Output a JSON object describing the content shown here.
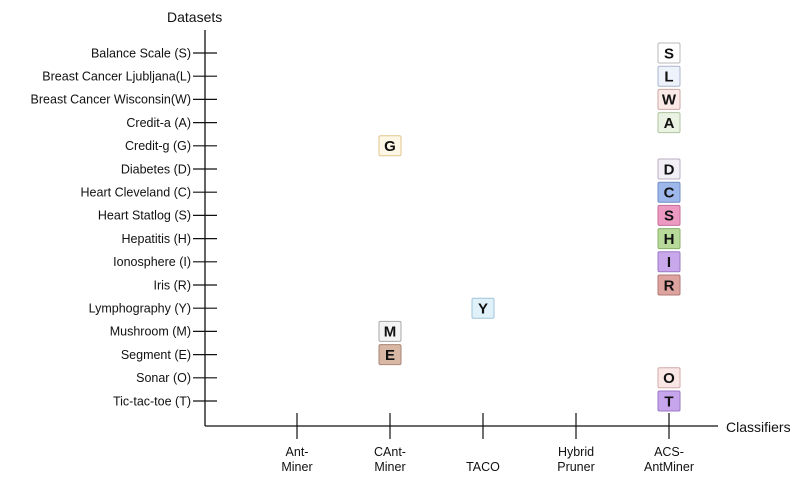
{
  "chart_data": {
    "type": "scatter",
    "xlabel": "Classifiers",
    "ylabel": "Datasets",
    "categories_x": [
      "Ant-\nMiner",
      "CAnt-\nMiner",
      "TACO",
      "Hybrid\nPruner",
      "ACS-\nAntMiner"
    ],
    "categories_y": [
      "Balance Scale (S)",
      "Breast Cancer Ljubljana(L)",
      "Breast Cancer Wisconsin(W)",
      "Credit-a (A)",
      "Credit-g (G)",
      "Diabetes (D)",
      "Heart Cleveland (C)",
      "Heart Statlog (S)",
      "Hepatitis (H)",
      "Ionosphere (I)",
      "Iris (R)",
      "Lymphography (Y)",
      "Mushroom (M)",
      "Segment (E)",
      "Sonar (O)",
      "Tic-tac-toe (T)"
    ],
    "points": [
      {
        "x": 4,
        "y": 0,
        "label": "S",
        "fill": "#ffffff",
        "stroke": "#b8b8b8"
      },
      {
        "x": 4,
        "y": 1,
        "label": "L",
        "fill": "#eef2fb",
        "stroke": "#aab4cc"
      },
      {
        "x": 4,
        "y": 2,
        "label": "W",
        "fill": "#fbe9e7",
        "stroke": "#c9a9a3"
      },
      {
        "x": 4,
        "y": 3,
        "label": "A",
        "fill": "#eaf3e3",
        "stroke": "#aec3a0"
      },
      {
        "x": 1,
        "y": 4,
        "label": "G",
        "fill": "#fff7e6",
        "stroke": "#e3c58e"
      },
      {
        "x": 4,
        "y": 5,
        "label": "D",
        "fill": "#f3eff6",
        "stroke": "#b7aec1"
      },
      {
        "x": 4,
        "y": 6,
        "label": "C",
        "fill": "#9fb8ec",
        "stroke": "#6f8cc4"
      },
      {
        "x": 4,
        "y": 7,
        "label": "S",
        "fill": "#ec9ac2",
        "stroke": "#c46f9a"
      },
      {
        "x": 4,
        "y": 8,
        "label": "H",
        "fill": "#b7d99a",
        "stroke": "#89b06b"
      },
      {
        "x": 4,
        "y": 9,
        "label": "I",
        "fill": "#c8a8ea",
        "stroke": "#9b78c4"
      },
      {
        "x": 4,
        "y": 10,
        "label": "R",
        "fill": "#dca39f",
        "stroke": "#b07774"
      },
      {
        "x": 2,
        "y": 11,
        "label": "Y",
        "fill": "#e1f1f9",
        "stroke": "#9fc6da"
      },
      {
        "x": 1,
        "y": 12,
        "label": "M",
        "fill": "#f3f3f3",
        "stroke": "#a8a8a8"
      },
      {
        "x": 1,
        "y": 13,
        "label": "E",
        "fill": "#d8b7a5",
        "stroke": "#a98676"
      },
      {
        "x": 4,
        "y": 14,
        "label": "O",
        "fill": "#fbe6e6",
        "stroke": "#d2a9a9"
      },
      {
        "x": 4,
        "y": 15,
        "label": "T",
        "fill": "#c7a5ec",
        "stroke": "#9a76c6"
      }
    ],
    "grid": false,
    "legend": "none"
  }
}
